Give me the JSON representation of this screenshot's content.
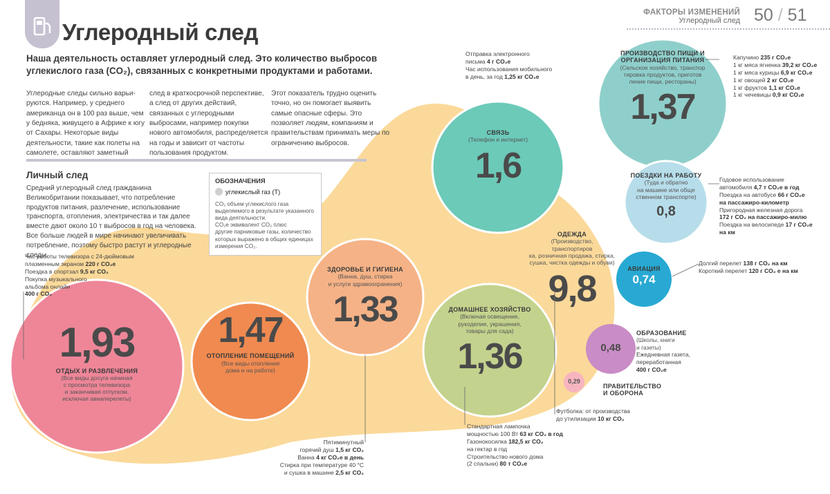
{
  "header": {
    "title": "Углеродный след",
    "section": "ФАКТОРЫ ИЗМЕНЕНИЙ",
    "subsection": "Углеродный след",
    "page_left": "50",
    "page_sep": "/",
    "page_right": "51"
  },
  "lead": {
    "line1": "Наша деятельность оставляет углеродный след. Это количество выбросов",
    "line2": "углекислого газа (CO₂), связанных с конкретными продуктами и работами."
  },
  "body_columns": [
    "Углеродные следы сильно варьи­руются. Например, у среднего американца он в 100 раз выше, чем у бедняка, живущего в Африке к югу от Сахары. Некоторые виды деятельности, такие как полеты на самолете, оставляют заметный",
    "след в краткосрочной перспек­тиве, а след от других действий, связанных с углеродными выбросами, например покупки нового автомобиля, распределя­ется на годы и зависит от часто­ты пользования продуктом.",
    "Этот показатель трудно оценить точно, но он помогает выявить самые опасные сферы. Это позволяет людям, компаниям и правительствам принимать меры по ограниче­нию выбросов."
  ],
  "personal": {
    "heading": "Личный след",
    "text": "Средний углеродный след гражданина Великобритании показывает, что потребление продуктов питания, разле­чение, использование транспорта, отопления, электриче­ства и так далее вместе дают около 10 т выбросов в год на человека. Все больше людей в мире начинают увеличивать потребление, поэтому быстро растут и углеродные следы."
  },
  "legend": {
    "title": "ОБОЗНАЧЕНИЯ",
    "item": "углекислый газ (Т)",
    "note_line1": "CO₂ объем   углекислого газа",
    "note_line2": "выделяемого в результате указанного",
    "note_line3": "вида деятельности.",
    "note_line4": "CO₂e эквивалент CO₂            плюс",
    "note_line5": "другие парниковые газы, количество",
    "note_line6": "которых выражено в общих единицах",
    "note_line7": "измерения CO₂."
  },
  "chart_data": {
    "type": "bubble",
    "title": "Углеродный след",
    "unit": "т CO₂",
    "bubbles": [
      {
        "name": "ОТДЫХ И РАЗВЛЕЧЕНИЯ",
        "desc": [
          "(Все виды досуга начиная",
          "с просмотра телевизора",
          "и заканчивая отпуском,",
          "исключая авиаперелеты)"
        ],
        "value": "1,93",
        "num": 1.93,
        "color": "#ee8698"
      },
      {
        "name": "ОТОПЛЕНИЕ ПОМЕЩЕНИЙ",
        "desc": [
          "(Все виды отопления",
          "дома и на работе)"
        ],
        "value": "1,47",
        "num": 1.47,
        "color": "#f08a50"
      },
      {
        "name": "ЗДОРОВЬЕ И ГИГИЕНА",
        "desc": [
          "(Ванна, душ, стирка",
          "и услуги здравоохранения)"
        ],
        "value": "1,33",
        "num": 1.33,
        "color": "#f5b286"
      },
      {
        "name": "ДОМАШНЕЕ ХОЗЯЙСТВО",
        "desc": [
          "(Включая освещение,",
          "рукоделие, украшения,",
          "товары для сада)"
        ],
        "value": "1,36",
        "num": 1.36,
        "color": "#c3d28d"
      },
      {
        "name": "СВЯЗЬ",
        "desc": [
          "(Телефон и интернет)"
        ],
        "value": "1,6",
        "num": 1.6,
        "color": "#6ccab9"
      },
      {
        "name": "ОДЕЖДА",
        "desc": [
          "(Производство, транспортиров­",
          "ка, розничная продажа, стирка,",
          "сушка, чистка одежды и обуви)"
        ],
        "value": "9,8",
        "num": 9.8,
        "color": ""
      },
      {
        "name": "ПРОИЗВОДСТВО ПИЩИ И ОРГАНИЗАЦИЯ ПИТАНИЯ",
        "desc": [
          "(Сельское хозяйство, транспор­",
          "тировка продуктов, приготов­",
          "ление пищи, рестораны)"
        ],
        "value": "1,37",
        "num": 1.37,
        "color": "#8fcfcb"
      },
      {
        "name": "ПОЕЗДКИ НА РАБОТУ",
        "desc": [
          "(Туда и обратно",
          "на машине или обще­",
          "ственном транспорте)"
        ],
        "value": "0,8",
        "num": 0.8,
        "color": "#b7ddea"
      },
      {
        "name": "АВИАЦИЯ",
        "desc": [],
        "value": "0,74",
        "num": 0.74,
        "color": "#28a9d3"
      },
      {
        "name": "ОБРАЗОВАНИЕ",
        "desc": [
          "(Школы, книги",
          "и газеты)"
        ],
        "value": "0,48",
        "num": 0.48,
        "color": "#c98cc6"
      },
      {
        "name": "ПРАВИТЕЛЬСТВО И ОБОРОНА",
        "desc": [],
        "value": "0,29",
        "num": 0.29,
        "color": "#f7b5bf"
      }
    ],
    "total_highlight": {
      "value": "9,8",
      "color": "#fbd99a"
    }
  },
  "annotations": {
    "leisure": [
      {
        "text": "Час работы телевизора с 24-дюймовым"
      },
      {
        "text": "плазменным экраном ",
        "bold": "220 г CO₂e"
      },
      {
        "text": "Поездка в спортзал ",
        "bold": "9,5 кг CO₂"
      },
      {
        "text": "Покупка музыкального"
      },
      {
        "text": "альбома онлайн"
      },
      {
        "text": "",
        "bold": "400 г CO₂"
      }
    ],
    "hygiene": [
      {
        "text": "Пятиминутный"
      },
      {
        "text": "горячий душ ",
        "bold": "1,5 кг CO₂"
      },
      {
        "text": "Ванна ",
        "bold": "4 кг CO₂e в день"
      },
      {
        "text": "Стирка при температуре 40 °С"
      },
      {
        "text": "и сушка в машине ",
        "bold": "2,5 кг CO₂"
      }
    ],
    "household": [
      {
        "text": "Стандартная лампочка"
      },
      {
        "text": "мощностью 100 Вт ",
        "bold": "63 кг CO₂ в год"
      },
      {
        "text": "Газонокосилка ",
        "bold": "182,5 кг CO₂"
      },
      {
        "text": "на гектар в год"
      },
      {
        "text": "Строительство нового дома"
      },
      {
        "text": "(2 спальни) ",
        "bold": "80 т CO₂e"
      }
    ],
    "clothing": [
      {
        "text": "Футболка: от производства"
      },
      {
        "text": "до утилизации ",
        "bold": "10 кг CO₂"
      }
    ],
    "communication": [
      {
        "text": "Отправка электронного"
      },
      {
        "text": "письма ",
        "bold": "4 г CO₂e"
      },
      {
        "text": "Час использования мобильного"
      },
      {
        "text": "в день, за год ",
        "bold": "1,25 кг CO₂e"
      }
    ],
    "food": [
      {
        "text": "Капучино ",
        "bold": "235 г CO₂e"
      },
      {
        "text": "1 кг мяса ягненка ",
        "bold": "39,2 кг CO₂e"
      },
      {
        "text": "1 кг мяса курицы ",
        "bold": "6,9 кг CO₂e"
      },
      {
        "text": "1 кг овощей ",
        "bold": "2 кг CO₂e"
      },
      {
        "text": "1 кг фруктов ",
        "bold": "1,1 кг CO₂e"
      },
      {
        "text": "1 кг чечевицы ",
        "bold": "0,9 кг CO₂e"
      }
    ],
    "commute": [
      {
        "text": "Годовое использование"
      },
      {
        "text": "автомобиля ",
        "bold": "4,7 т CO₂e в год"
      },
      {
        "text": "Поездка на автобусе ",
        "bold": "66 г CO₂e"
      },
      {
        "text": "",
        "bold": "на пассажиро-километр"
      },
      {
        "text": "Пригородная железная дорога"
      },
      {
        "text": "",
        "bold": "172 г CO₂ на пассажиро-милю"
      },
      {
        "text": "Поездка на велосипеде ",
        "bold": "17 г CO₂e"
      },
      {
        "text": "",
        "bold": "на км"
      }
    ],
    "aviation": [
      {
        "text": "Долгий перелет ",
        "bold": "138 г CO₂ на км"
      },
      {
        "text": "Короткий перелет ",
        "bold": "120 г CO₂ e на км"
      }
    ],
    "education": [
      {
        "text": "Ежедневная газета,"
      },
      {
        "text": "переработанная"
      },
      {
        "text": "",
        "bold": "400 г CO₂e"
      }
    ]
  }
}
